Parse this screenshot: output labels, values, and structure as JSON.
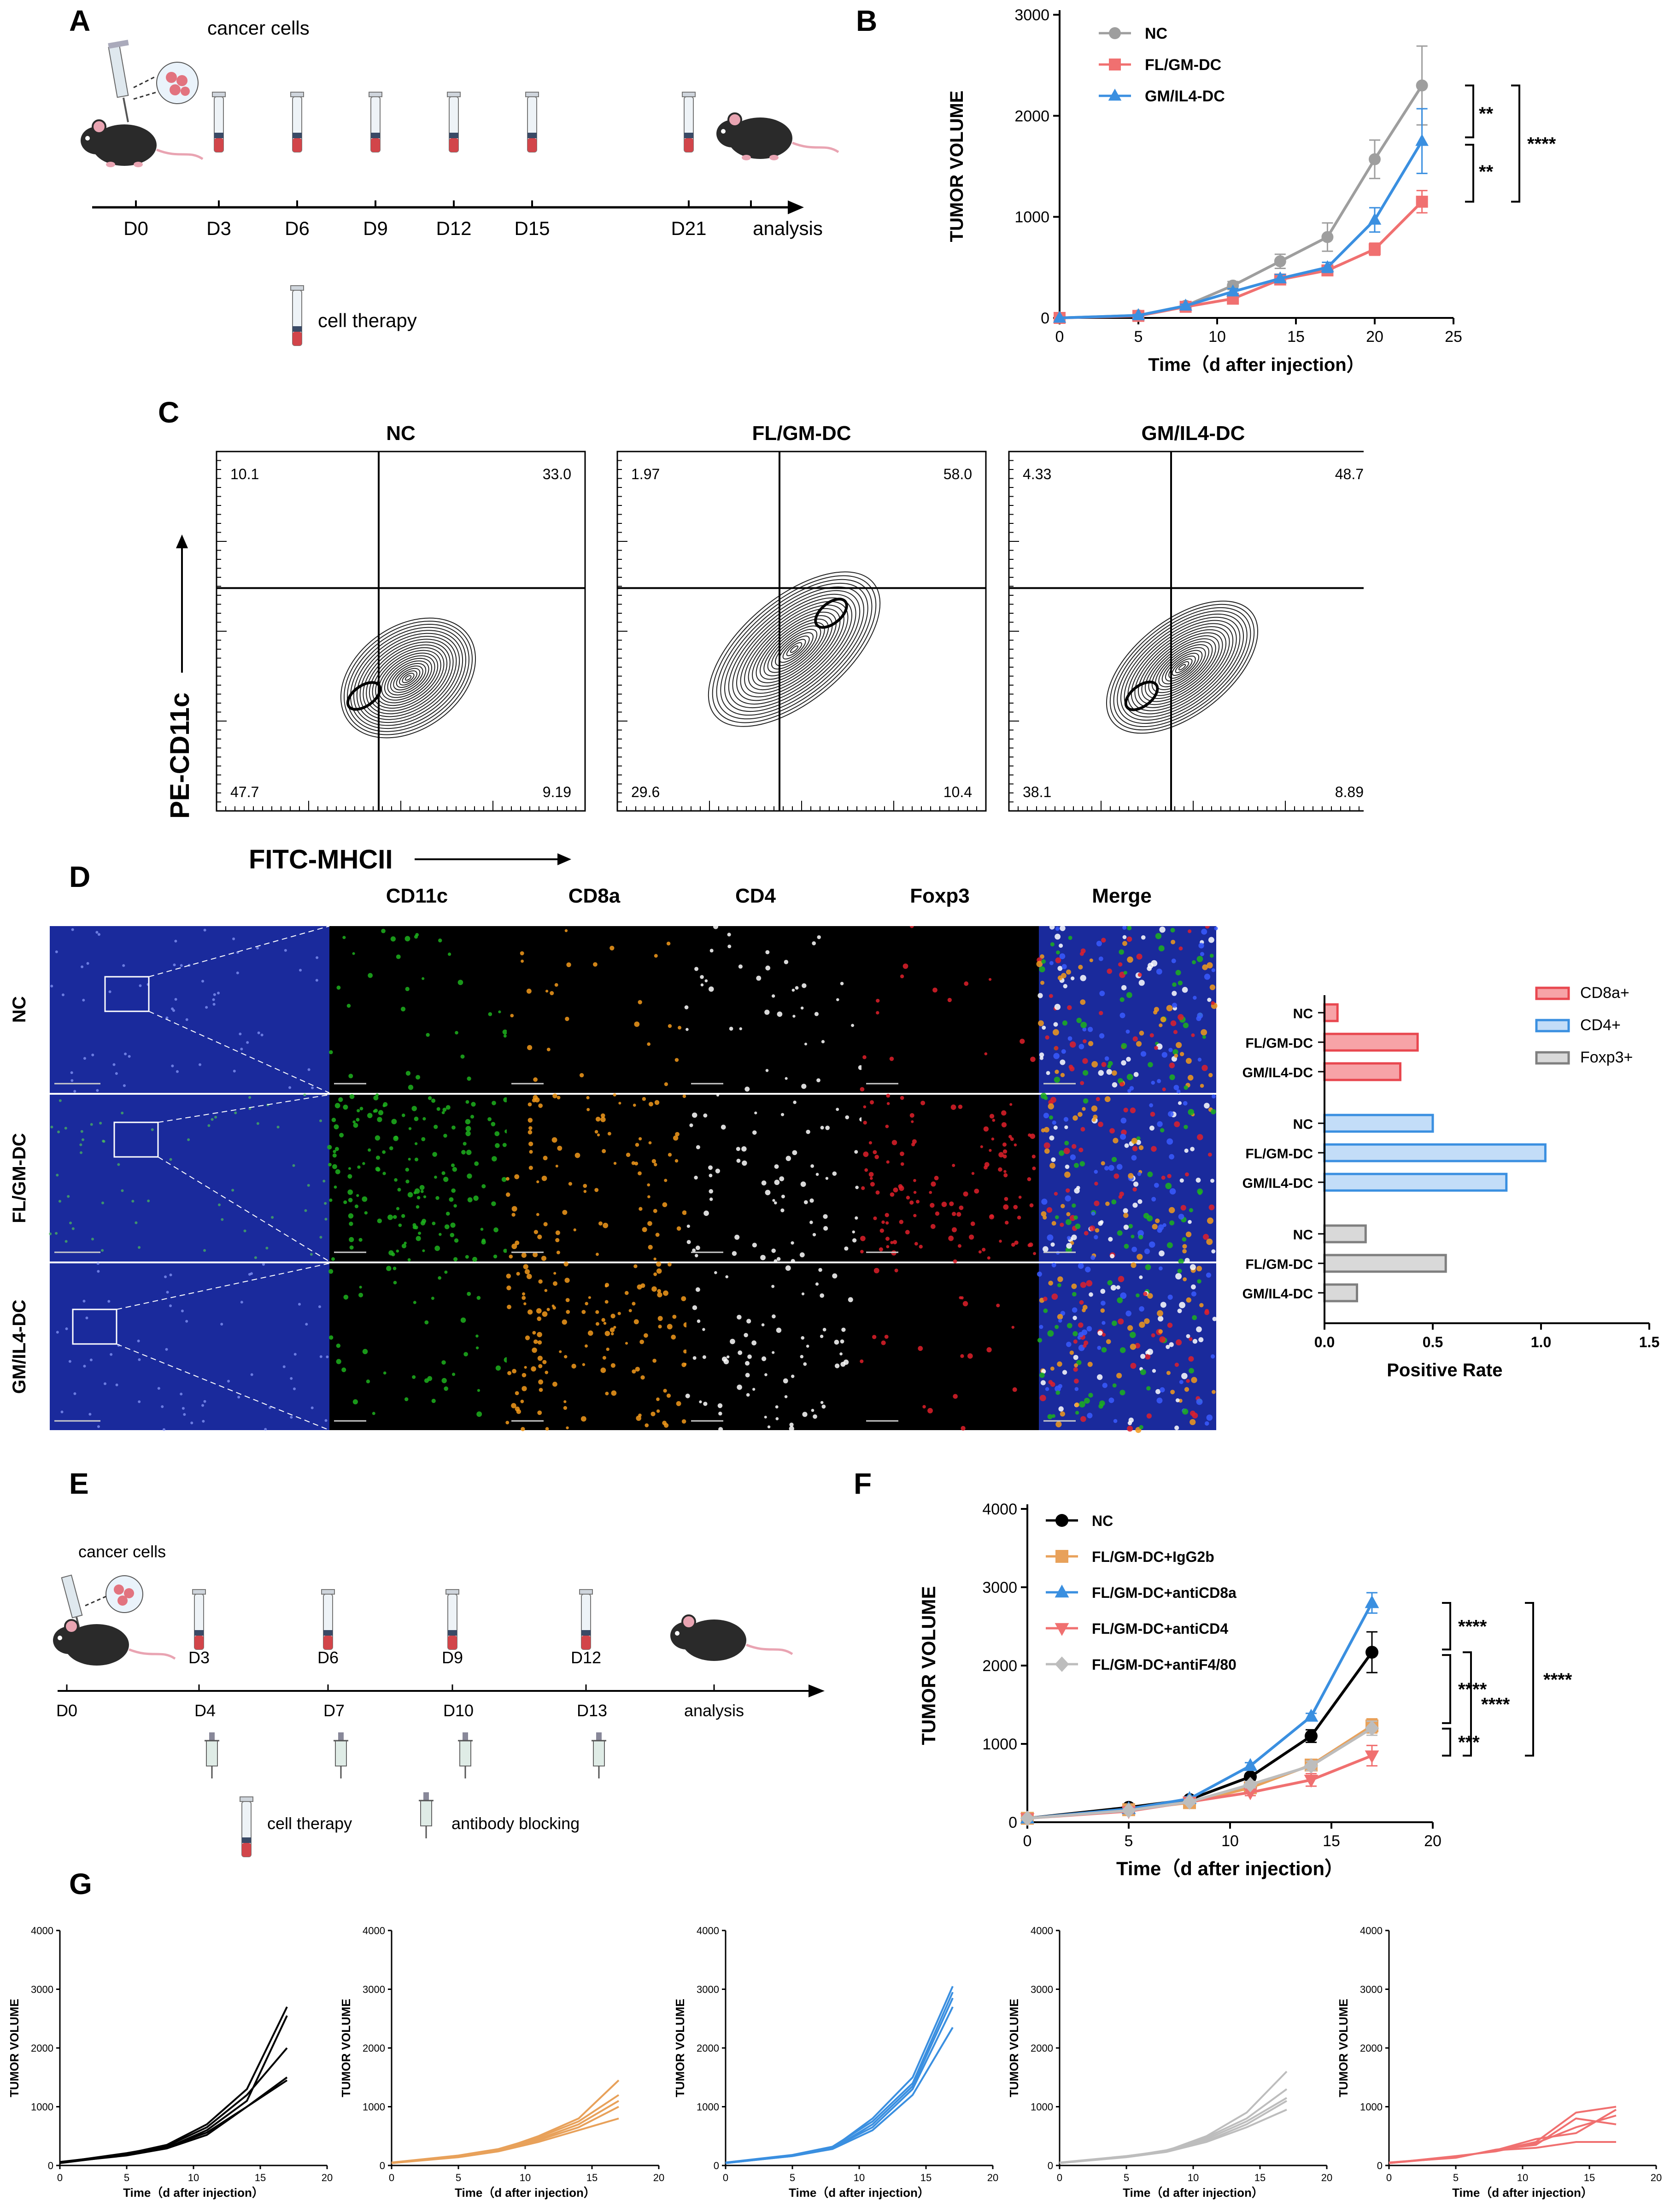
{
  "panel_labels": {
    "A": "A",
    "B": "B",
    "C": "C",
    "D": "D",
    "E": "E",
    "F": "F",
    "G": "G"
  },
  "panel_a": {
    "top_label": "cancer cells",
    "days": [
      "D0",
      "D3",
      "D6",
      "D9",
      "D12",
      "D15",
      "D21"
    ],
    "end_label": "analysis",
    "legend_label": "cell therapy"
  },
  "panel_b": {
    "significance": [
      "**",
      "**",
      "****"
    ]
  },
  "panel_c": {
    "ylabel": "PE-CD11c",
    "xlabel": "FITC-MHCII",
    "plots": [
      {
        "title": "NC",
        "ul": "10.1",
        "ur": "33.0",
        "ll": "47.7",
        "lr": "9.19"
      },
      {
        "title": "FL/GM-DC",
        "ul": "1.97",
        "ur": "58.0",
        "ll": "29.6",
        "lr": "10.4"
      },
      {
        "title": "GM/IL4-DC",
        "ul": "4.33",
        "ur": "48.7",
        "ll": "38.1",
        "lr": "8.89"
      }
    ]
  },
  "panel_d": {
    "channels": [
      {
        "label": "CD11c",
        "color": "#1db11d"
      },
      {
        "label": "CD8a",
        "color": "#f39a1b"
      },
      {
        "label": "CD4",
        "color": "#f0a6c8"
      },
      {
        "label": "Foxp3",
        "color": "#e0202a"
      },
      {
        "label": "Merge",
        "color": "#1b6eb7"
      }
    ],
    "rows": [
      "NC",
      "FL/GM-DC",
      "GM/IL4-DC"
    ]
  },
  "panel_e": {
    "top_label": "cancer cells",
    "therapy_days": [
      "D3",
      "D6",
      "D9",
      "D12"
    ],
    "axis_days": [
      "D0",
      "D4",
      "D7",
      "D10",
      "D13"
    ],
    "end_label": "analysis",
    "legend_therapy": "cell therapy",
    "legend_blocking": "antibody blocking"
  },
  "panel_f": {
    "significance": [
      "****",
      "****",
      "***",
      "****",
      "****"
    ]
  },
  "chart_data": [
    {
      "id": "B",
      "type": "line",
      "xlabel": "Time（d after injection）",
      "ylabel": "TUMOR VOLUME",
      "xlim": [
        0,
        25
      ],
      "ylim": [
        0,
        3000
      ],
      "xticks": [
        0,
        5,
        10,
        15,
        20,
        25
      ],
      "yticks": [
        0,
        1000,
        2000,
        3000
      ],
      "legend": "top-left",
      "series": [
        {
          "name": "NC",
          "color": "#9e9e9e",
          "marker": "circle",
          "x": [
            0,
            5,
            8,
            11,
            14,
            17,
            20,
            23
          ],
          "y": [
            0,
            25,
            120,
            320,
            560,
            800,
            1570,
            2300
          ],
          "err": [
            0,
            10,
            20,
            40,
            70,
            140,
            190,
            390
          ]
        },
        {
          "name": "FL/GM-DC",
          "color": "#f07070",
          "marker": "square",
          "x": [
            0,
            5,
            8,
            11,
            14,
            17,
            20,
            23
          ],
          "y": [
            0,
            20,
            110,
            190,
            380,
            470,
            680,
            1150
          ],
          "err": [
            0,
            8,
            15,
            25,
            30,
            40,
            60,
            110
          ]
        },
        {
          "name": "GM/IL4-DC",
          "color": "#3a8fe0",
          "marker": "triangle",
          "x": [
            0,
            5,
            8,
            11,
            14,
            17,
            20,
            23
          ],
          "y": [
            0,
            25,
            120,
            260,
            390,
            500,
            970,
            1750
          ],
          "err": [
            0,
            8,
            15,
            30,
            40,
            50,
            120,
            320
          ]
        }
      ]
    },
    {
      "id": "D",
      "type": "bar",
      "orientation": "horizontal",
      "xlabel": "Positive Rate",
      "xlim": [
        0,
        1.5
      ],
      "xticks": [
        0.0,
        0.5,
        1.0,
        1.5
      ],
      "legend": "right",
      "groups": [
        {
          "name": "CD8a+",
          "color": "#e8474f",
          "fill": "#f7a3a7",
          "categories": [
            "NC",
            "FL/GM-DC",
            "GM/IL4-DC"
          ],
          "values": [
            0.06,
            0.43,
            0.35
          ]
        },
        {
          "name": "CD4+",
          "color": "#3a8fe0",
          "fill": "#c3ddf8",
          "categories": [
            "NC",
            "FL/GM-DC",
            "GM/IL4-DC"
          ],
          "values": [
            0.5,
            1.02,
            0.84
          ]
        },
        {
          "name": "Foxp3+",
          "color": "#7f7f7f",
          "fill": "#d9d9d9",
          "categories": [
            "NC",
            "FL/GM-DC",
            "GM/IL4-DC"
          ],
          "values": [
            0.19,
            0.56,
            0.15
          ]
        }
      ]
    },
    {
      "id": "F",
      "type": "line",
      "xlabel": "Time（d after injection）",
      "ylabel": "TUMOR VOLUME",
      "xlim": [
        0,
        20
      ],
      "ylim": [
        0,
        4000
      ],
      "xticks": [
        0,
        5,
        10,
        15,
        20
      ],
      "yticks": [
        0,
        1000,
        2000,
        3000,
        4000
      ],
      "legend": "top-left",
      "series": [
        {
          "name": "NC",
          "color": "#000000",
          "marker": "circle",
          "x": [
            0,
            5,
            8,
            11,
            14,
            17
          ],
          "y": [
            50,
            190,
            290,
            580,
            1100,
            2170
          ],
          "err": [
            0,
            20,
            30,
            40,
            80,
            260
          ]
        },
        {
          "name": "FL/GM-DC+IgG2b",
          "color": "#e8a15a",
          "marker": "square",
          "x": [
            0,
            5,
            8,
            11,
            14,
            17
          ],
          "y": [
            50,
            160,
            250,
            440,
            730,
            1230
          ],
          "err": [
            0,
            20,
            25,
            40,
            60,
            90
          ]
        },
        {
          "name": "FL/GM-DC+antiCD8a",
          "color": "#3a8fe0",
          "marker": "triangle",
          "x": [
            0,
            5,
            8,
            11,
            14,
            17
          ],
          "y": [
            50,
            170,
            300,
            720,
            1350,
            2800
          ],
          "err": [
            0,
            20,
            25,
            40,
            40,
            130
          ]
        },
        {
          "name": "FL/GM-DC+antiCD4",
          "color": "#f07070",
          "marker": "triangle-down",
          "x": [
            0,
            5,
            8,
            11,
            14,
            17
          ],
          "y": [
            50,
            140,
            260,
            380,
            540,
            850
          ],
          "err": [
            0,
            20,
            25,
            40,
            80,
            130
          ]
        },
        {
          "name": "FL/GM-DC+antiF4/80",
          "color": "#bdbdbd",
          "marker": "diamond",
          "x": [
            0,
            5,
            8,
            11,
            14,
            17
          ],
          "y": [
            50,
            150,
            260,
            480,
            720,
            1200
          ],
          "err": [
            0,
            20,
            25,
            40,
            60,
            90
          ]
        }
      ]
    },
    {
      "id": "G",
      "type": "line",
      "xlabel": "Time（d after injection）",
      "ylabel": "TUMOR VOLUME",
      "xlim": [
        0,
        20
      ],
      "ylim": [
        0,
        4000
      ],
      "xticks": [
        0,
        5,
        10,
        15,
        20
      ],
      "yticks": [
        0,
        1000,
        2000,
        3000,
        4000
      ],
      "x": [
        0,
        5,
        8,
        11,
        14,
        17
      ],
      "panels": [
        {
          "color": "#000000",
          "mice": [
            [
              50,
              200,
              350,
              700,
              1300,
              2700
            ],
            [
              40,
              180,
              300,
              600,
              1100,
              2550
            ],
            [
              50,
              210,
              330,
              650,
              1200,
              2000
            ],
            [
              60,
              190,
              310,
              560,
              1000,
              1500
            ],
            [
              50,
              170,
              290,
              520,
              1000,
              1450
            ]
          ]
        },
        {
          "color": "#e8a15a",
          "mice": [
            [
              40,
              160,
              260,
              500,
              800,
              1450
            ],
            [
              50,
              170,
              280,
              480,
              750,
              1200
            ],
            [
              40,
              150,
              250,
              450,
              700,
              1100
            ],
            [
              50,
              160,
              260,
              430,
              650,
              1000
            ],
            [
              40,
              140,
              240,
              400,
              600,
              800
            ]
          ]
        },
        {
          "color": "#3a8fe0",
          "mice": [
            [
              40,
              170,
              300,
              800,
              1500,
              3050
            ],
            [
              50,
              180,
              320,
              750,
              1400,
              2950
            ],
            [
              40,
              160,
              290,
              700,
              1350,
              2850
            ],
            [
              50,
              170,
              300,
              650,
              1300,
              2700
            ],
            [
              40,
              160,
              280,
              600,
              1200,
              2350
            ]
          ]
        },
        {
          "color": "#bdbdbd",
          "mice": [
            [
              40,
              160,
              250,
              500,
              900,
              1600
            ],
            [
              50,
              150,
              240,
              480,
              800,
              1300
            ],
            [
              40,
              150,
              260,
              450,
              750,
              1150
            ],
            [
              50,
              160,
              240,
              420,
              700,
              1100
            ],
            [
              40,
              140,
              230,
              400,
              650,
              950
            ]
          ]
        },
        {
          "color": "#f07070",
          "mice": [
            [
              40,
              150,
              250,
              400,
              900,
              1000
            ],
            [
              50,
              140,
              260,
              450,
              550,
              950
            ],
            [
              40,
              160,
              240,
              380,
              650,
              850
            ],
            [
              50,
              130,
              270,
              350,
              800,
              700
            ],
            [
              40,
              140,
              260,
              300,
              400,
              400
            ]
          ]
        }
      ]
    }
  ]
}
